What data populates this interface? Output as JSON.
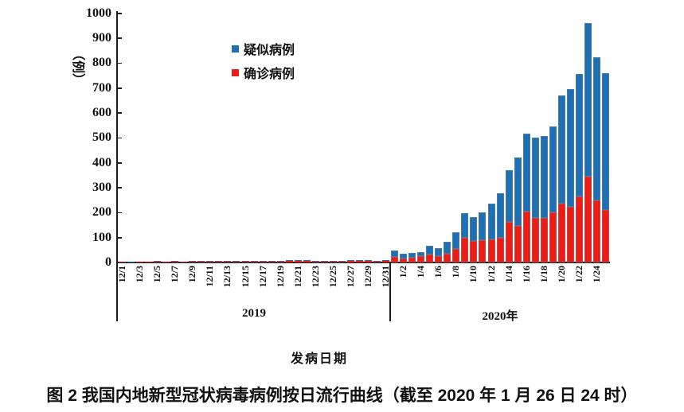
{
  "figure": {
    "caption": "图 2  我国内地新型冠状病毒病例按日流行曲线（截至 2020 年 1 月 26 日 24 时）",
    "x_axis_title": "发病日期",
    "y_axis_title": "（例）"
  },
  "chart_data": {
    "type": "bar",
    "stacked": true,
    "title": "图 2  我国内地新型冠状病毒病例按日流行曲线（截至 2020 年 1 月 26 日 24 时）",
    "xlabel": "发病日期",
    "ylabel": "（例）",
    "ylim": [
      0,
      1000
    ],
    "yticks": [
      0,
      100,
      200,
      300,
      400,
      500,
      600,
      700,
      800,
      900,
      1000
    ],
    "grid": false,
    "legend_position": "inside-top-left",
    "xtick_every": 2,
    "legend": [
      {
        "label": "疑似病例",
        "color": "#1f6fb5"
      },
      {
        "label": "确诊病例",
        "color": "#ee1c15"
      }
    ],
    "year_groups": [
      {
        "label": "2019",
        "from": "12/1",
        "to": "12/31"
      },
      {
        "label": "2020年",
        "from": "1/1",
        "to": "1/25"
      }
    ],
    "categories": [
      "12/1",
      "12/2",
      "12/3",
      "12/4",
      "12/5",
      "12/6",
      "12/7",
      "12/8",
      "12/9",
      "12/10",
      "12/11",
      "12/12",
      "12/13",
      "12/14",
      "12/15",
      "12/16",
      "12/17",
      "12/18",
      "12/19",
      "12/20",
      "12/21",
      "12/22",
      "12/23",
      "12/24",
      "12/25",
      "12/26",
      "12/27",
      "12/28",
      "12/29",
      "12/30",
      "12/31",
      "1/1",
      "1/2",
      "1/3",
      "1/4",
      "1/5",
      "1/6",
      "1/7",
      "1/8",
      "1/9",
      "1/10",
      "1/11",
      "1/12",
      "1/13",
      "1/14",
      "1/15",
      "1/16",
      "1/17",
      "1/18",
      "1/19",
      "1/20",
      "1/21",
      "1/22",
      "1/23",
      "1/24",
      "1/25"
    ],
    "series": [
      {
        "name": "确诊病例",
        "color": "#ee1c15",
        "values": [
          1,
          0,
          1,
          1,
          1,
          1,
          1,
          2,
          1,
          2,
          1,
          1,
          2,
          2,
          2,
          3,
          3,
          3,
          4,
          5,
          6,
          5,
          4,
          3,
          3,
          3,
          5,
          5,
          5,
          4,
          5,
          21,
          17,
          20,
          25,
          33,
          26,
          35,
          55,
          99,
          87,
          88,
          92,
          100,
          164,
          148,
          204,
          178,
          178,
          202,
          237,
          224,
          264,
          345,
          250,
          210
        ]
      },
      {
        "name": "疑似病例",
        "color": "#1f6fb5",
        "values": [
          0,
          1,
          0,
          0,
          1,
          0,
          1,
          0,
          1,
          1,
          1,
          1,
          1,
          1,
          1,
          1,
          1,
          1,
          1,
          1,
          1,
          1,
          1,
          1,
          1,
          2,
          3,
          3,
          3,
          3,
          4,
          26,
          17,
          18,
          18,
          35,
          30,
          47,
          66,
          99,
          96,
          113,
          145,
          177,
          207,
          273,
          314,
          323,
          330,
          342,
          433,
          470,
          493,
          615,
          572,
          548
        ]
      }
    ]
  }
}
